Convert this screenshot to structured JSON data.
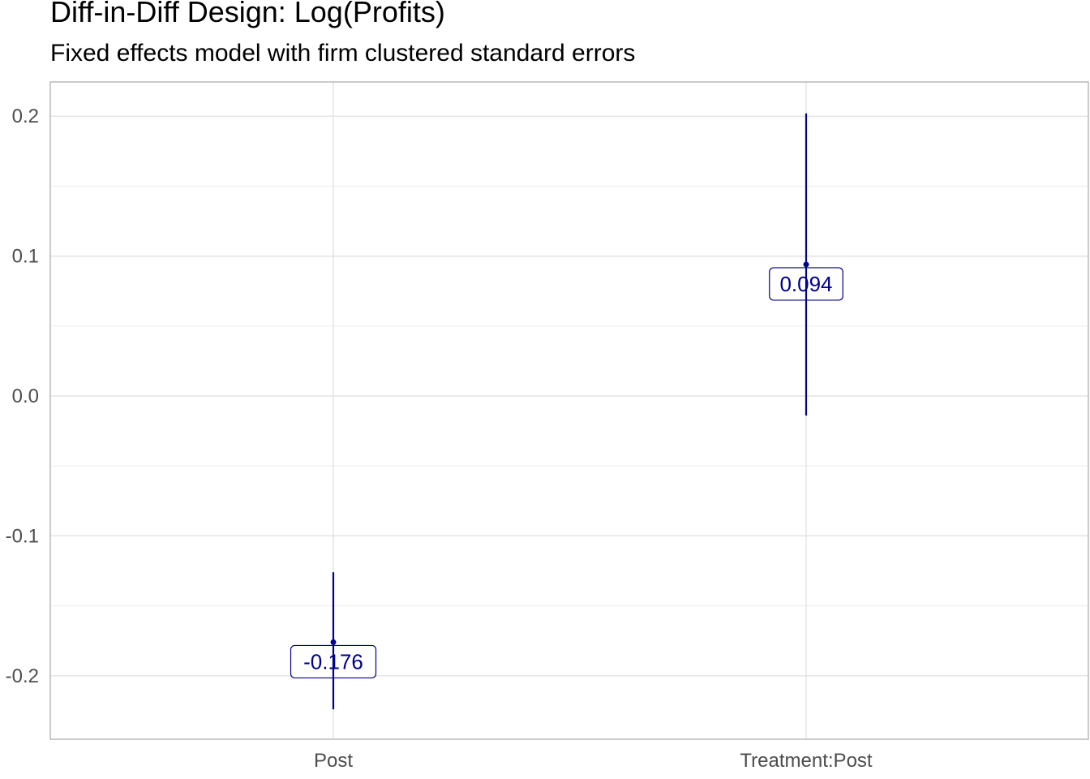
{
  "chart_data": {
    "type": "errorbar",
    "title": "Diff-in-Diff Design: Log(Profits)",
    "subtitle": "Fixed effects model with firm clustered standard errors",
    "xlabel": "",
    "ylabel": "",
    "categories": [
      "Post",
      "Treatment:Post"
    ],
    "estimates": [
      -0.176,
      0.094
    ],
    "ci_lower": [
      -0.224,
      -0.014
    ],
    "ci_upper": [
      -0.126,
      0.202
    ],
    "data_labels": [
      "-0.176",
      "0.094"
    ],
    "ylim": [
      -0.245,
      0.224
    ],
    "y_ticks": [
      -0.2,
      -0.1,
      0.0,
      0.1,
      0.2
    ],
    "y_tick_labels": [
      "-0.2",
      "-0.1",
      "0.0",
      "0.1",
      "0.2"
    ],
    "grid": true,
    "color": "#00008B"
  }
}
